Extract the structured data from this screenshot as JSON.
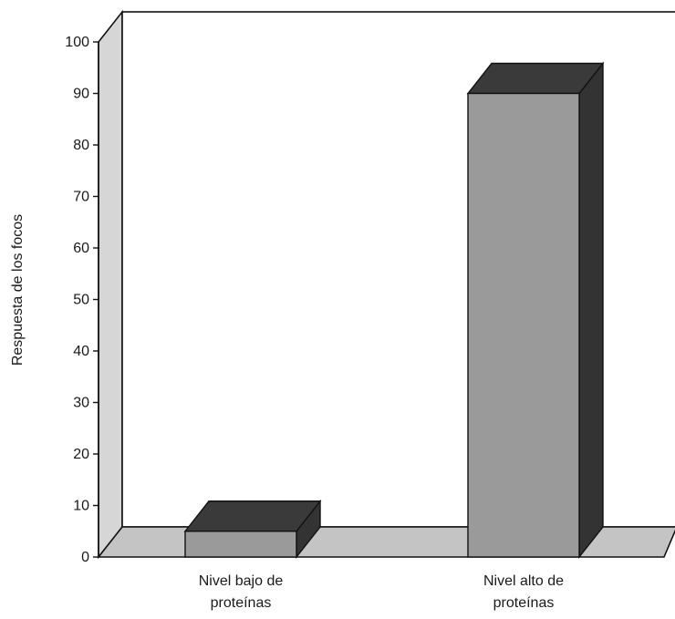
{
  "chart_data": {
    "type": "bar",
    "title": "",
    "xlabel": "",
    "ylabel": "Respuesta de los focos",
    "ylim": [
      0,
      100
    ],
    "yticks": [
      0,
      10,
      20,
      30,
      40,
      50,
      60,
      70,
      80,
      90,
      100
    ],
    "categories": [
      [
        "Nivel bajo de",
        "proteínas"
      ],
      [
        "Nivel alto de",
        "proteínas"
      ]
    ],
    "values": [
      5,
      90
    ],
    "grid": false,
    "style": "3d",
    "colors": {
      "front": "#9a9a9a",
      "top": "#3a3a3a",
      "side": "#333333",
      "wall": "#d6d6d6",
      "floor": "#c4c4c4"
    }
  }
}
